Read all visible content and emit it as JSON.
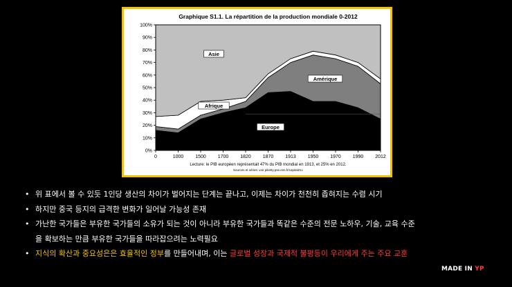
{
  "chart_data": {
    "type": "area",
    "stacked": true,
    "title": "Graphique S1.1. La répartition de la production mondiale 0-2012",
    "categories": [
      "0",
      "1000",
      "1500",
      "1700",
      "1820",
      "1870",
      "1913",
      "1950",
      "1970",
      "1990",
      "2012"
    ],
    "ylim": [
      0,
      100
    ],
    "y_tick_labels": [
      "0%",
      "10%",
      "20%",
      "30%",
      "40%",
      "50%",
      "60%",
      "70%",
      "80%",
      "90%",
      "100%"
    ],
    "grid": false,
    "series": [
      {
        "name": "Europe",
        "color": "#000000",
        "values": [
          16,
          14,
          25,
          30,
          34,
          46,
          47,
          39,
          39,
          34,
          25
        ]
      },
      {
        "name": "Amérique",
        "color": "#7f7f7f",
        "values": [
          3,
          3,
          3,
          3,
          5,
          12,
          23,
          37,
          34,
          33,
          28
        ]
      },
      {
        "name": "Afrique",
        "color": "#ffffff",
        "values": [
          8,
          11,
          11,
          7,
          3,
          3,
          3,
          3,
          3,
          3,
          4
        ]
      },
      {
        "name": "Asie",
        "color": "#c0c0c0",
        "values": [
          73,
          72,
          61,
          60,
          58,
          39,
          27,
          21,
          24,
          30,
          43
        ]
      }
    ],
    "note": "Lecture: le PIB européen représentait 47% du PIB mondial en 1913, et 25% en 2012.",
    "source": "Sources et séries: voir piketty.pse.ens.fr/capital21c"
  },
  "bullets": [
    {
      "segments": [
        {
          "text": "위 표에서 볼 수 있듯 1인당 생산의 차이가 벌어지는 단계는 끝나고, 이제는 차이가 천천히 좁혀지는 수렴 시기"
        }
      ]
    },
    {
      "segments": [
        {
          "text": "하지만 중국 등지의 급격한 변화가 일어날 가능성 존재"
        }
      ]
    },
    {
      "segments": [
        {
          "text": "가난한 국가들은 부유한 국가들의 소유가 되는 것이 아니라 부유한 국가들과 똑같은 수준의 전문 노하우, 기술, 교육 수준"
        }
      ],
      "continuation": "을 확보하는 만큼 부유한 국가들을 따라잡으려는 노력필요"
    },
    {
      "segments": [
        {
          "text": "지식의 확산과 중요성은은 효율적인 정부",
          "color": "yellow"
        },
        {
          "text": "를 만들어내며, 이는 ",
          "color": "white"
        },
        {
          "text": "글로벌 성장과 국제적 불평등이 우리에게 주는 주요 교훈",
          "color": "red"
        }
      ]
    }
  ],
  "bullet_symbol": "•",
  "logo": {
    "text_main": "MADE IN ",
    "text_accent": "YP"
  }
}
